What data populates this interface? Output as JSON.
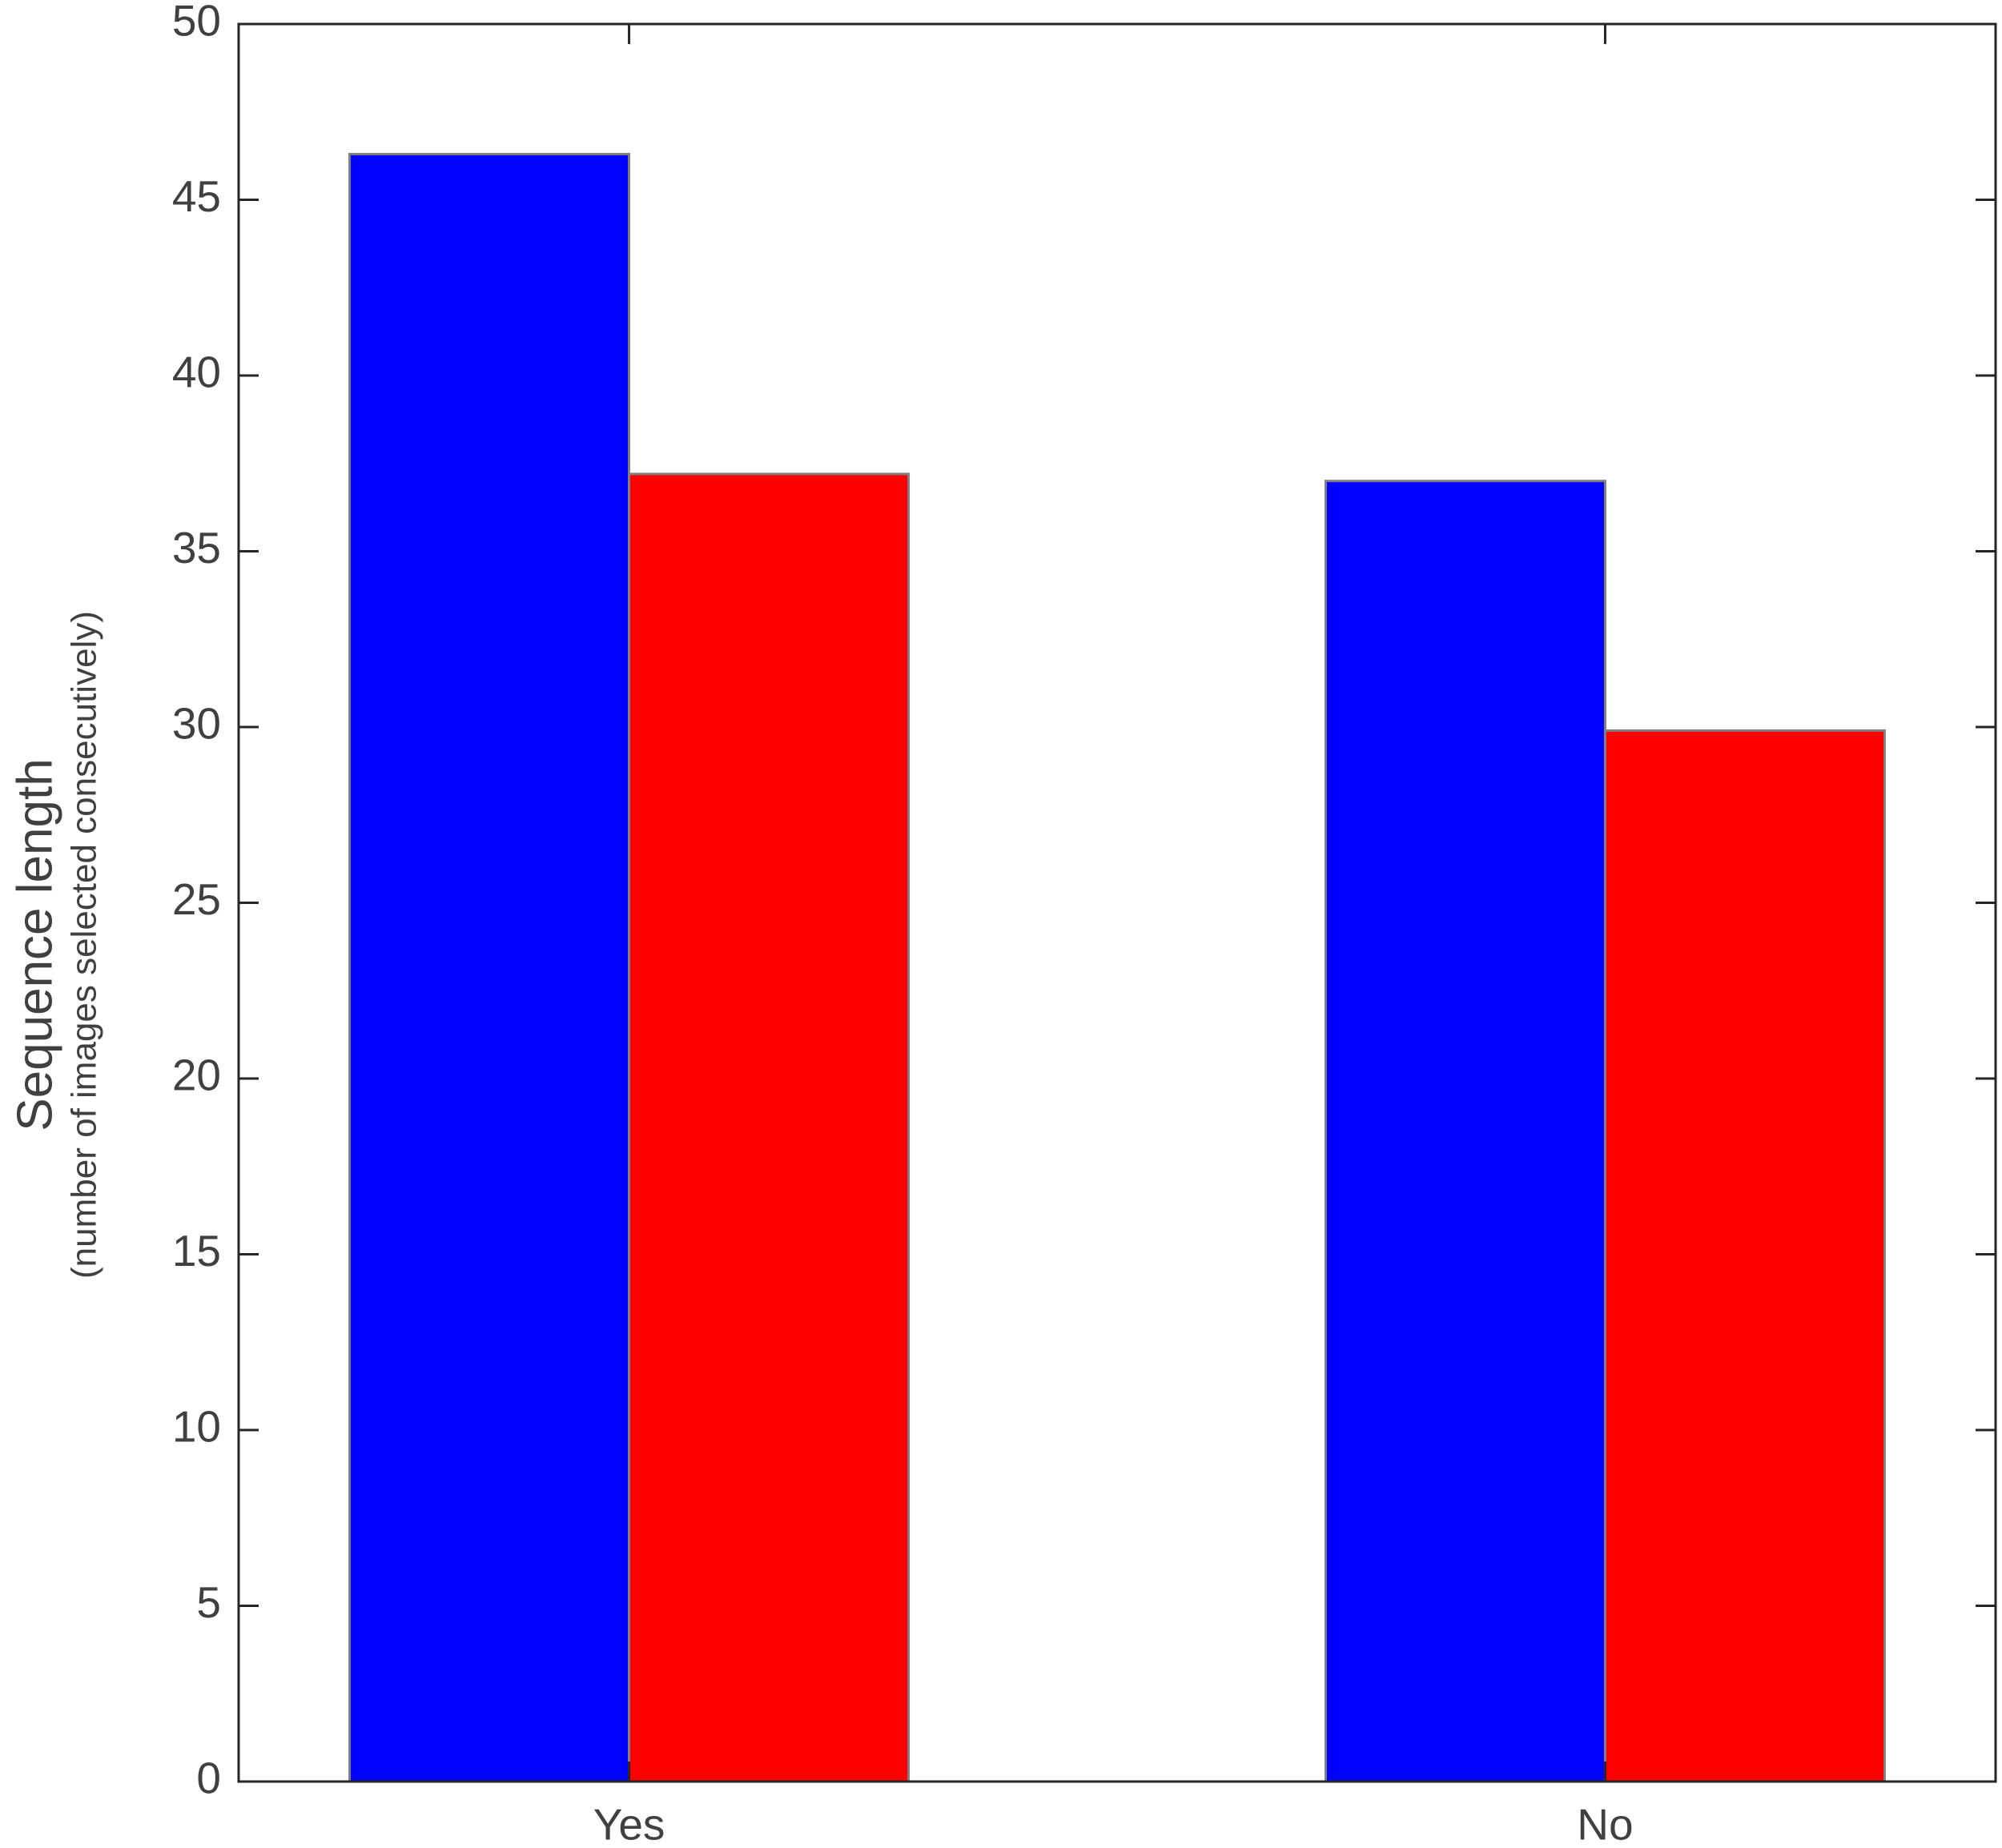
{
  "chart_data": {
    "type": "bar",
    "y_label": "Sequence length",
    "y_sublabel": "(number of images selected consecutively)",
    "categories": [
      "Yes",
      "No"
    ],
    "series": [
      {
        "color": "#0000ff",
        "values": [
          46.3,
          37.0
        ]
      },
      {
        "color": "#ff0000",
        "values": [
          37.2,
          29.9
        ]
      }
    ],
    "ylim": [
      0,
      50
    ],
    "yticks": [
      0,
      5,
      10,
      15,
      20,
      25,
      30,
      35,
      40,
      45,
      50
    ]
  }
}
